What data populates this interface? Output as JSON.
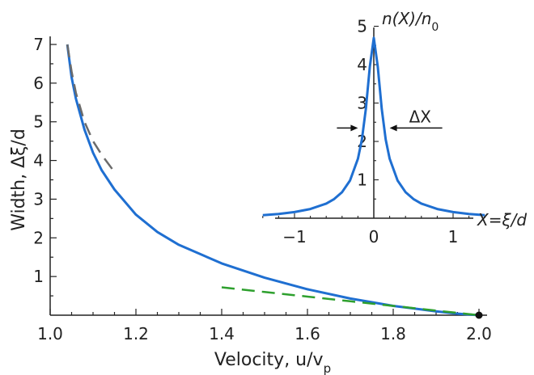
{
  "chart_data": [
    {
      "type": "line",
      "xlabel": "Velocity, u/v",
      "xlabel_sub": "p",
      "ylabel": "Width, Δξ/d",
      "xlim": [
        1.0,
        2.0
      ],
      "ylim": [
        0,
        7
      ],
      "x_ticks": [
        "1.0",
        "1.2",
        "1.4",
        "1.6",
        "1.8",
        "2.0"
      ],
      "y_ticks": [
        "1",
        "2",
        "3",
        "4",
        "5",
        "6",
        "7"
      ],
      "grid": false,
      "series": [
        {
          "style": "solid",
          "color": "#1f6fd1",
          "x": [
            1.04,
            1.05,
            1.06,
            1.08,
            1.1,
            1.12,
            1.15,
            1.2,
            1.25,
            1.3,
            1.4,
            1.5,
            1.6,
            1.7,
            1.8,
            1.9,
            1.95,
            2.0
          ],
          "y": [
            7.0,
            6.15,
            5.6,
            4.8,
            4.2,
            3.75,
            3.25,
            2.6,
            2.15,
            1.82,
            1.34,
            0.97,
            0.67,
            0.43,
            0.24,
            0.1,
            0.04,
            0.0
          ]
        },
        {
          "style": "dashed",
          "color": "#6b6b6b",
          "x": [
            1.04,
            1.05,
            1.06,
            1.08,
            1.1,
            1.12,
            1.15
          ],
          "y": [
            7.0,
            6.3,
            5.75,
            5.0,
            4.5,
            4.15,
            3.7
          ]
        },
        {
          "style": "dashed",
          "color": "#2ea02e",
          "x": [
            1.4,
            1.5,
            1.6,
            1.7,
            1.8,
            1.9,
            2.0
          ],
          "y": [
            0.72,
            0.6,
            0.48,
            0.36,
            0.24,
            0.12,
            0.0
          ]
        }
      ],
      "markers": [
        {
          "x": 2.0,
          "y": 0.0,
          "color": "#111111"
        }
      ]
    },
    {
      "type": "line",
      "inset": true,
      "ylabel": "n(X)/n",
      "ylabel_sub": "0",
      "xlabel": "X=ξ/d",
      "xlim": [
        -1.5,
        1.5
      ],
      "ylim": [
        0,
        5
      ],
      "x_ticks": [
        "−1",
        "0",
        "1"
      ],
      "y_ticks": [
        "1",
        "2",
        "3",
        "4",
        "5"
      ],
      "series": [
        {
          "style": "solid",
          "color": "#1f6fd1",
          "x": [
            -1.4,
            -1.2,
            -1.0,
            -0.8,
            -0.6,
            -0.5,
            -0.4,
            -0.3,
            -0.2,
            -0.15,
            -0.1,
            -0.05,
            0.0,
            0.05,
            0.1,
            0.15,
            0.2,
            0.3,
            0.4,
            0.5,
            0.6,
            0.8,
            1.0,
            1.2,
            1.4
          ],
          "y": [
            0.08,
            0.11,
            0.16,
            0.24,
            0.38,
            0.5,
            0.68,
            0.98,
            1.55,
            2.05,
            2.85,
            3.95,
            4.7,
            3.95,
            2.85,
            2.05,
            1.55,
            0.98,
            0.68,
            0.5,
            0.38,
            0.24,
            0.16,
            0.11,
            0.08
          ]
        }
      ],
      "annotations": [
        {
          "text": "ΔX",
          "type": "width-arrows",
          "y": 2.35,
          "x_from": -0.2,
          "x_to": 0.2
        }
      ]
    }
  ]
}
